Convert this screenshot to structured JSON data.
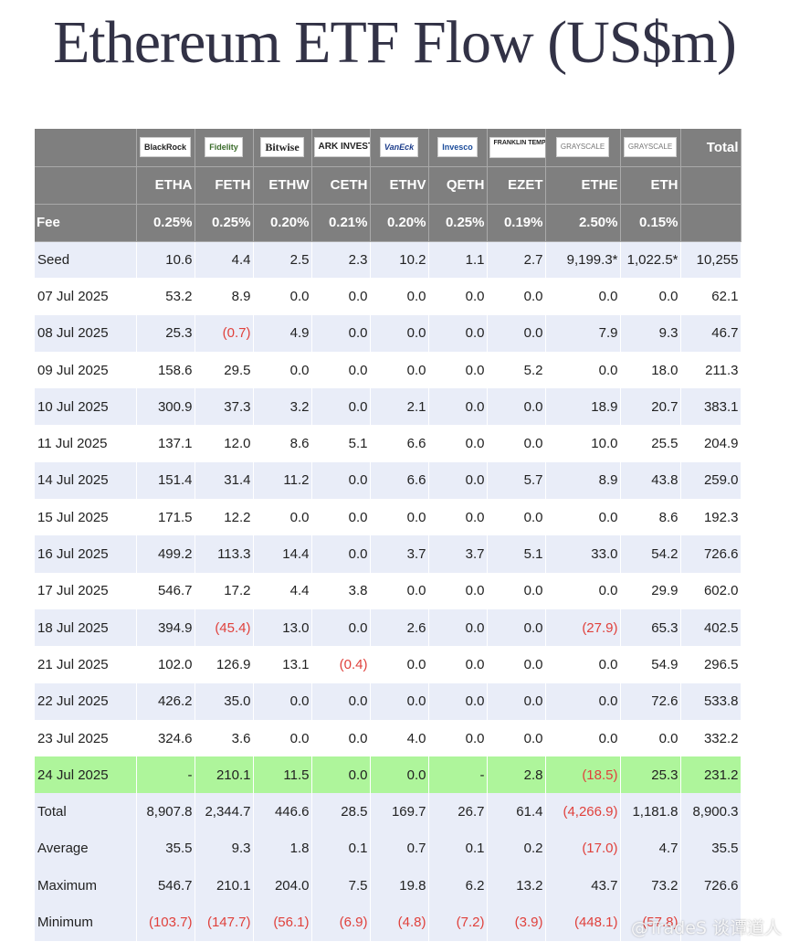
{
  "title": "Ethereum ETF Flow (US$m)",
  "issuers": [
    {
      "logo": "BlackRock",
      "style": "black"
    },
    {
      "logo": "Fidelity",
      "style": "fid"
    },
    {
      "logo": "Bitwise",
      "style": "bitwise"
    },
    {
      "logo": "ARK INVEST",
      "style": "ark"
    },
    {
      "logo": "VanEck",
      "style": "vaneck"
    },
    {
      "logo": "Invesco",
      "style": "invesco"
    },
    {
      "logo": "FRANKLIN TEMPLETON",
      "style": "frank"
    },
    {
      "logo": "GRAYSCALE",
      "style": "gray"
    },
    {
      "logo": "GRAYSCALE",
      "style": "gray"
    }
  ],
  "total_header": "Total",
  "tickers": [
    "ETHA",
    "FETH",
    "ETHW",
    "CETH",
    "ETHV",
    "QETH",
    "EZET",
    "ETHE",
    "ETH"
  ],
  "fee_label": "Fee",
  "fees": [
    "0.25%",
    "0.25%",
    "0.20%",
    "0.21%",
    "0.20%",
    "0.25%",
    "0.19%",
    "2.50%",
    "0.15%"
  ],
  "rows": [
    {
      "label": "Seed",
      "style": "shade",
      "values": [
        "10.6",
        "4.4",
        "2.5",
        "2.3",
        "10.2",
        "1.1",
        "2.7",
        "9,199.3*",
        "1,022.5*",
        "10,255"
      ]
    },
    {
      "label": "07 Jul 2025",
      "style": "plain",
      "values": [
        "53.2",
        "8.9",
        "0.0",
        "0.0",
        "0.0",
        "0.0",
        "0.0",
        "0.0",
        "0.0",
        "62.1"
      ]
    },
    {
      "label": "08 Jul 2025",
      "style": "shade",
      "values": [
        "25.3",
        "(0.7)",
        "4.9",
        "0.0",
        "0.0",
        "0.0",
        "0.0",
        "7.9",
        "9.3",
        "46.7"
      ]
    },
    {
      "label": "09 Jul 2025",
      "style": "plain",
      "values": [
        "158.6",
        "29.5",
        "0.0",
        "0.0",
        "0.0",
        "0.0",
        "5.2",
        "0.0",
        "18.0",
        "211.3"
      ]
    },
    {
      "label": "10 Jul 2025",
      "style": "shade",
      "values": [
        "300.9",
        "37.3",
        "3.2",
        "0.0",
        "2.1",
        "0.0",
        "0.0",
        "18.9",
        "20.7",
        "383.1"
      ]
    },
    {
      "label": "11 Jul 2025",
      "style": "plain",
      "values": [
        "137.1",
        "12.0",
        "8.6",
        "5.1",
        "6.6",
        "0.0",
        "0.0",
        "10.0",
        "25.5",
        "204.9"
      ]
    },
    {
      "label": "14 Jul 2025",
      "style": "shade",
      "values": [
        "151.4",
        "31.4",
        "11.2",
        "0.0",
        "6.6",
        "0.0",
        "5.7",
        "8.9",
        "43.8",
        "259.0"
      ]
    },
    {
      "label": "15 Jul 2025",
      "style": "plain",
      "values": [
        "171.5",
        "12.2",
        "0.0",
        "0.0",
        "0.0",
        "0.0",
        "0.0",
        "0.0",
        "8.6",
        "192.3"
      ]
    },
    {
      "label": "16 Jul 2025",
      "style": "shade",
      "values": [
        "499.2",
        "113.3",
        "14.4",
        "0.0",
        "3.7",
        "3.7",
        "5.1",
        "33.0",
        "54.2",
        "726.6"
      ]
    },
    {
      "label": "17 Jul 2025",
      "style": "plain",
      "values": [
        "546.7",
        "17.2",
        "4.4",
        "3.8",
        "0.0",
        "0.0",
        "0.0",
        "0.0",
        "29.9",
        "602.0"
      ]
    },
    {
      "label": "18 Jul 2025",
      "style": "shade",
      "values": [
        "394.9",
        "(45.4)",
        "13.0",
        "0.0",
        "2.6",
        "0.0",
        "0.0",
        "(27.9)",
        "65.3",
        "402.5"
      ]
    },
    {
      "label": "21 Jul 2025",
      "style": "plain",
      "values": [
        "102.0",
        "126.9",
        "13.1",
        "(0.4)",
        "0.0",
        "0.0",
        "0.0",
        "0.0",
        "54.9",
        "296.5"
      ]
    },
    {
      "label": "22 Jul 2025",
      "style": "shade",
      "values": [
        "426.2",
        "35.0",
        "0.0",
        "0.0",
        "0.0",
        "0.0",
        "0.0",
        "0.0",
        "72.6",
        "533.8"
      ]
    },
    {
      "label": "23 Jul 2025",
      "style": "plain",
      "values": [
        "324.6",
        "3.6",
        "0.0",
        "0.0",
        "4.0",
        "0.0",
        "0.0",
        "0.0",
        "0.0",
        "332.2"
      ]
    },
    {
      "label": "24 Jul 2025",
      "style": "hl",
      "values": [
        "-",
        "210.1",
        "11.5",
        "0.0",
        "0.0",
        "-",
        "2.8",
        "(18.5)",
        "25.3",
        "231.2"
      ]
    },
    {
      "label": "Total",
      "style": "shade",
      "values": [
        "8,907.8",
        "2,344.7",
        "446.6",
        "28.5",
        "169.7",
        "26.7",
        "61.4",
        "(4,266.9)",
        "1,181.8",
        "8,900.3"
      ]
    },
    {
      "label": "Average",
      "style": "shade",
      "values": [
        "35.5",
        "9.3",
        "1.8",
        "0.1",
        "0.7",
        "0.1",
        "0.2",
        "(17.0)",
        "4.7",
        "35.5"
      ]
    },
    {
      "label": "Maximum",
      "style": "shade",
      "values": [
        "546.7",
        "210.1",
        "204.0",
        "7.5",
        "19.8",
        "6.2",
        "13.2",
        "43.7",
        "73.2",
        "726.6"
      ]
    },
    {
      "label": "Minimum",
      "style": "shade",
      "values": [
        "(103.7)",
        "(147.7)",
        "(56.1)",
        "(6.9)",
        "(4.8)",
        "(7.2)",
        "(3.9)",
        "(448.1)",
        "(57.8)",
        ""
      ]
    }
  ],
  "watermark": "@TradeS 谈谭道人"
}
